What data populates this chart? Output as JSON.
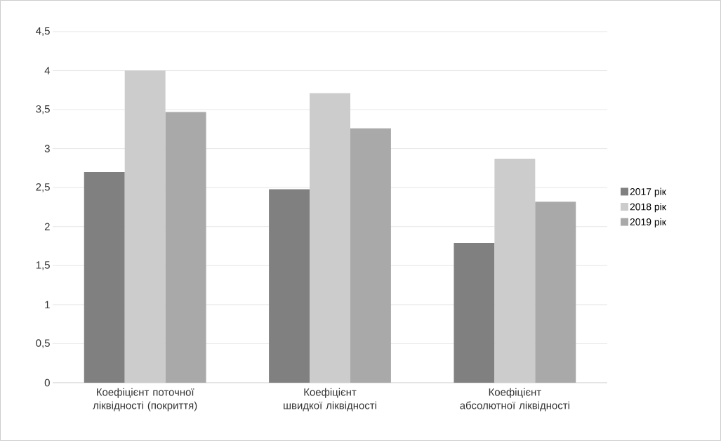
{
  "chart_data": {
    "type": "bar",
    "categories": [
      "Коефіцієнт поточної ліквідності (покриття)",
      "Коефіцієнт швидкої ліквідності",
      "Коефіцієнт абсолютної ліквідності"
    ],
    "series": [
      {
        "name": "2017 рік",
        "color": "#808080",
        "values": [
          2.7,
          2.48,
          1.79
        ]
      },
      {
        "name": "2018 рік",
        "color": "#cccccc",
        "values": [
          4.0,
          3.71,
          2.87
        ]
      },
      {
        "name": "2019 рік",
        "color": "#a9a9a9",
        "values": [
          3.47,
          3.26,
          2.32
        ]
      }
    ],
    "ylim": [
      0,
      4.5
    ],
    "yticks": [
      0,
      {
        "value": 0.5,
        "label": "0,5"
      },
      1,
      {
        "value": 1.5,
        "label": "1,5"
      },
      2,
      {
        "value": 2.5,
        "label": "2,5"
      },
      3,
      {
        "value": 3.5,
        "label": "3,5"
      },
      4,
      {
        "value": 4.5,
        "label": "4,5"
      }
    ],
    "grid": "y",
    "legend": "right"
  }
}
